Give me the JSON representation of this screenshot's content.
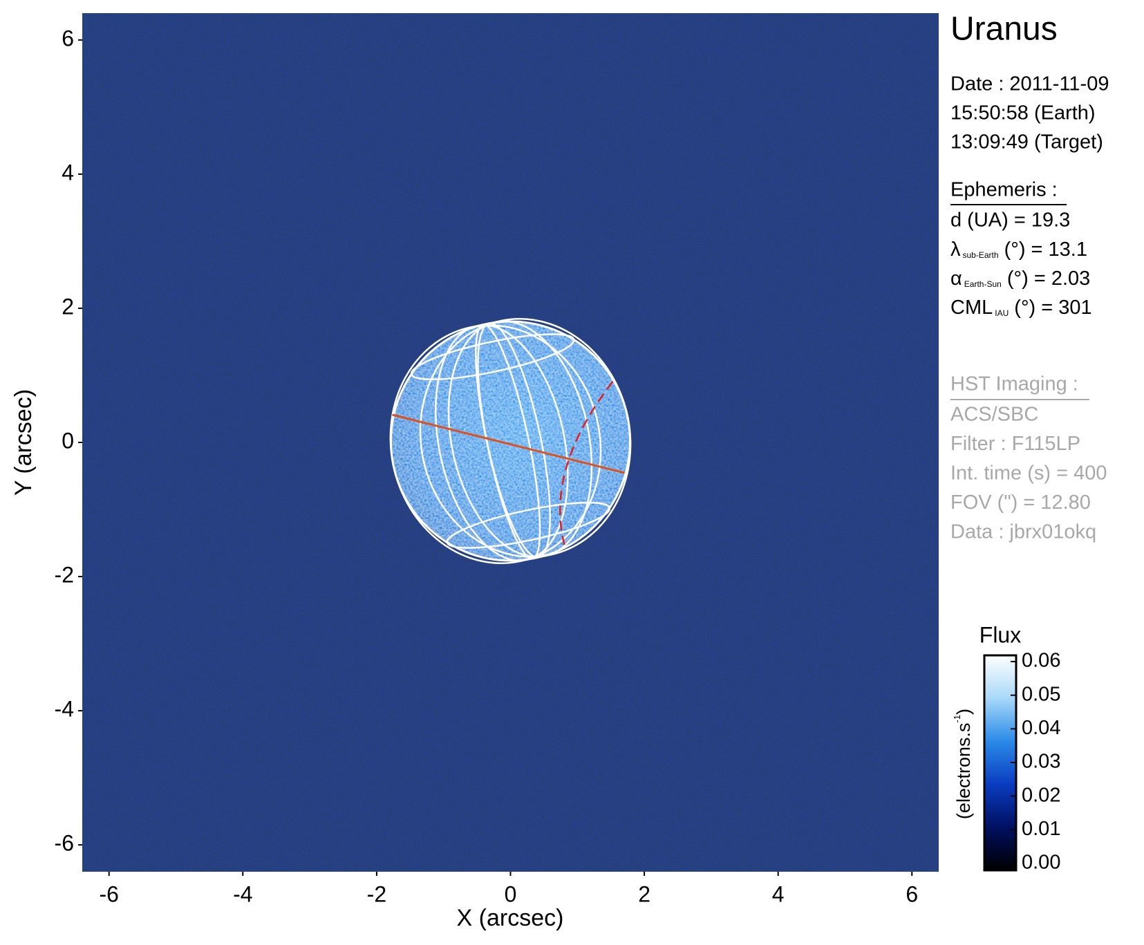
{
  "chart_data": {
    "type": "image",
    "title": "Uranus",
    "xlabel": "X (arcsec)",
    "ylabel": "Y (arcsec)",
    "xlim": [
      -6.4,
      6.4
    ],
    "ylim": [
      -6.4,
      6.4
    ],
    "xticks": [
      -6,
      -4,
      -2,
      0,
      2,
      4,
      6
    ],
    "yticks": [
      -6,
      -4,
      -2,
      0,
      2,
      4,
      6
    ],
    "date_lines": [
      "Date : 2011-11-09",
      "15:50:58 (Earth)",
      "13:09:49 (Target)"
    ],
    "ephemeris_title": "Ephemeris :",
    "ephemeris": [
      {
        "text": "d (UA)    = 19.3"
      },
      {
        "symbol": "λ",
        "sub": "sub-Earth",
        "rest": " (°) = 13.1"
      },
      {
        "symbol": "α",
        "sub": "Earth-Sun",
        "rest": " (°) = 2.03"
      },
      {
        "symbol": "CML",
        "sub": "IAU",
        "rest": " (°) = 301"
      }
    ],
    "imaging_title": "HST Imaging :",
    "imaging": [
      "ACS/SBC",
      "Filter : F115LP",
      "Int. time (s) = 400",
      "FOV (\") = 12.80",
      "Data : jbrx01okq"
    ],
    "colorbar_title": "Flux",
    "colorbar_unit": {
      "text": "(electrons.s",
      "sup": "-1",
      "end": ")"
    },
    "clim": [
      0,
      0.06
    ],
    "cticks": [
      {
        "value": 0,
        "label": "0.00"
      },
      0.01,
      0.02,
      0.03,
      0.04,
      0.05,
      0.06
    ],
    "colormap": [
      "#000000",
      "#001060",
      "#0a3cc0",
      "#2a8ae8",
      "#a8d8f8",
      "#ffffff"
    ]
  }
}
